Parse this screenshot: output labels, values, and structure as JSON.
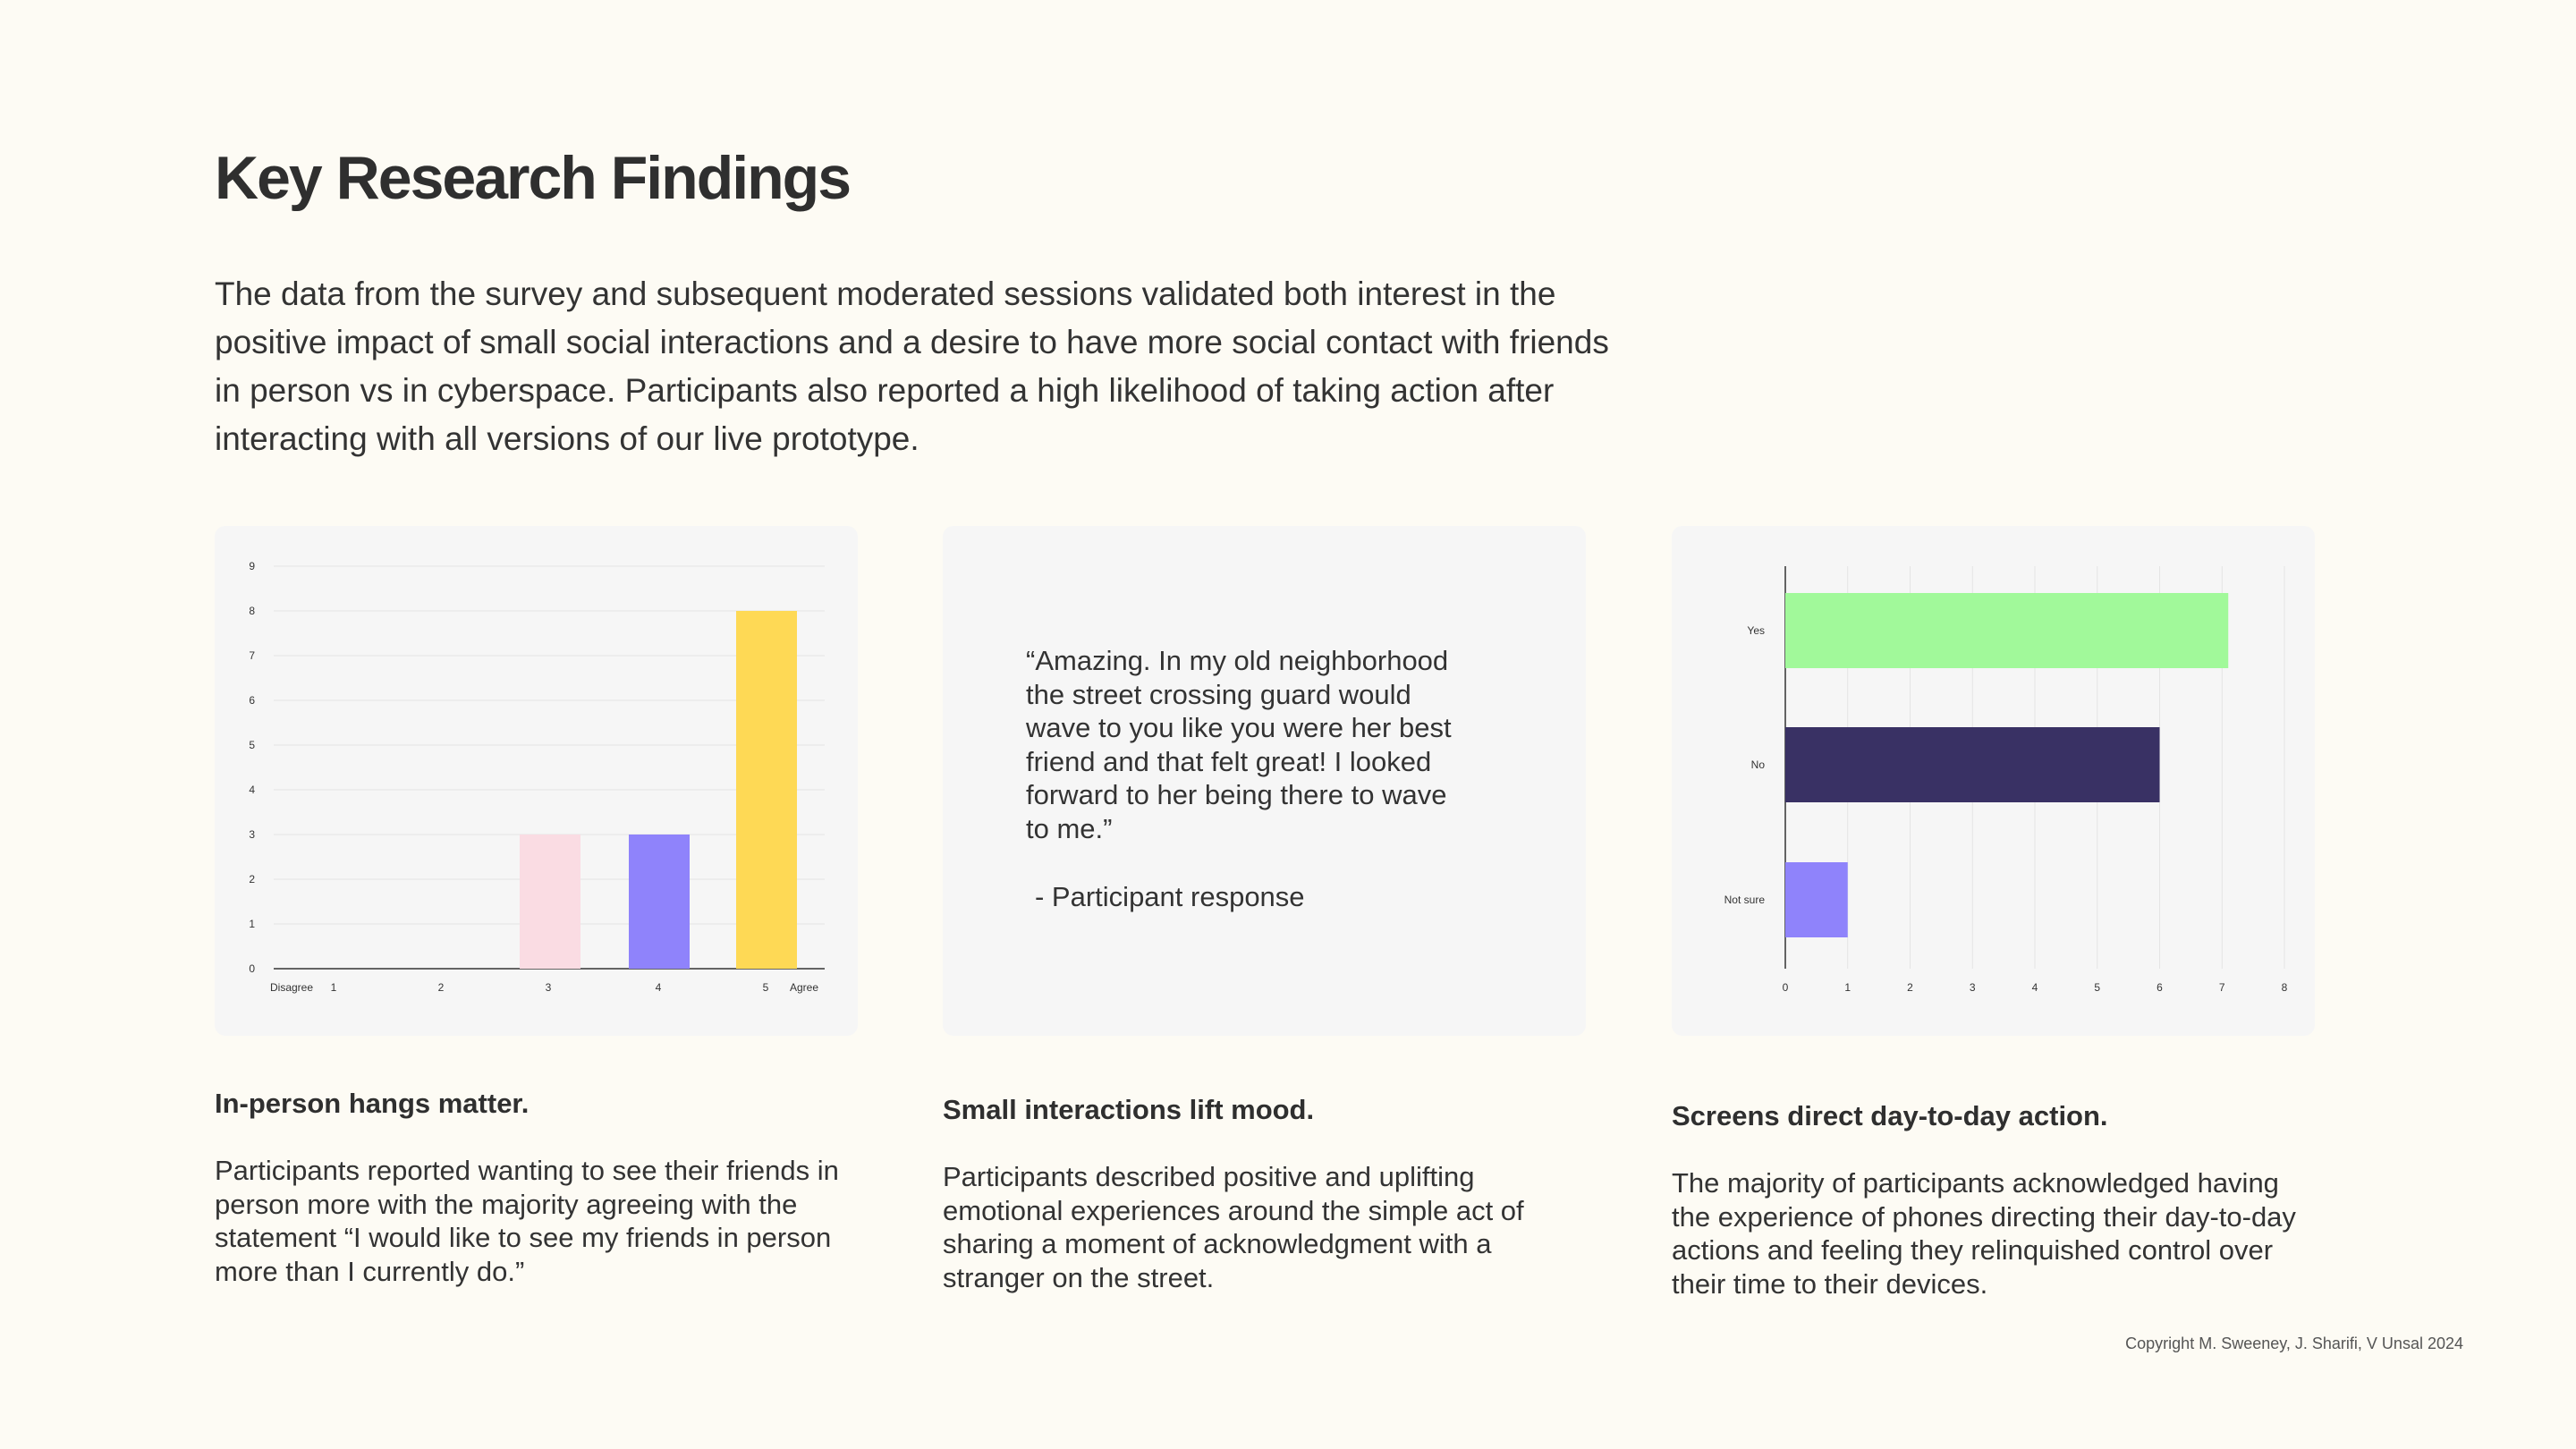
{
  "title": "Key Research Findings",
  "intro": "The data from the survey and subsequent moderated sessions validated both interest in the positive impact of small social interactions and a desire to have more social contact with friends in person vs in cyberspace. Participants also reported a high likelihood of taking action after interacting with all versions of our live prototype.",
  "findings": [
    {
      "heading": "In-person hangs matter.",
      "body": "Participants reported wanting to see their friends in person more with the majority agreeing with the statement “I would like to see my friends in person more than I currently do.”"
    },
    {
      "heading": "Small interactions lift mood.",
      "body": "Participants described positive and uplifting emotional experiences around the simple act of sharing a moment of acknowledgment with a stranger on the street."
    },
    {
      "heading": "Screens direct day-to-day action.",
      "body": "The majority of participants acknowledged having the experience of phones directing their day-to-day actions and feeling they relinquished control over their time to their devices."
    }
  ],
  "quote": {
    "text": "“Amazing. In my old neighborhood the street crossing guard would wave to you like you were her best friend and that felt great! I looked forward to her being there to wave to me.”",
    "attribution": "- Participant response"
  },
  "copyright": "Copyright M. Sweeney, J. Sharifi, V Unsal 2024",
  "chart_data": [
    {
      "type": "bar",
      "orientation": "vertical",
      "categories": [
        "1",
        "2",
        "3",
        "4",
        "5"
      ],
      "values": [
        0,
        0,
        3,
        3,
        8
      ],
      "colors": [
        "#fadce3",
        "#fadce3",
        "#fadce3",
        "#8f83fb",
        "#fed955"
      ],
      "scale_labels": {
        "low": "Disagree",
        "high": "Agree"
      },
      "yticks": [
        "0",
        "1",
        "2",
        "3",
        "4",
        "5",
        "6",
        "7",
        "8",
        "9"
      ],
      "ylim": [
        0,
        9
      ],
      "grid": true
    },
    {
      "type": "bar",
      "orientation": "horizontal",
      "categories": [
        "Yes",
        "No",
        "Not sure"
      ],
      "values": [
        7.1,
        6,
        1
      ],
      "colors": [
        "#a1f99a",
        "#393164",
        "#8f83fb"
      ],
      "xticks": [
        "0",
        "1",
        "2",
        "3",
        "4",
        "5",
        "6",
        "7",
        "8"
      ],
      "xlim": [
        0,
        8
      ],
      "grid": true
    }
  ]
}
